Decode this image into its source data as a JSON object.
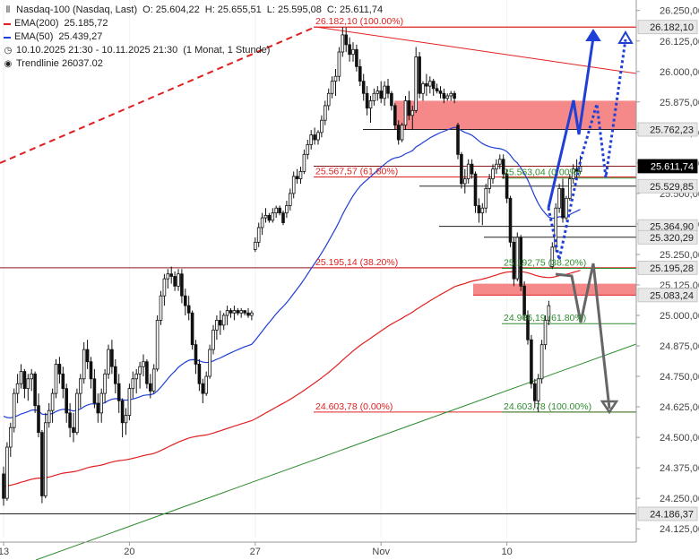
{
  "legend": {
    "instrument": "Nasdaq-100 (Nasdaq, Last)",
    "ohlc": {
      "open": "O: 25.604,22",
      "high": "H: 25.655,51",
      "low": "L: 25.595,08",
      "close": "C: 25.611,74"
    },
    "ema200": {
      "label": "EMA(200)",
      "value": "25.185,72",
      "color": "#e02020"
    },
    "ema50": {
      "label": "EMA(50)",
      "value": "25.439,27",
      "color": "#1f3fd6"
    },
    "period": "10.10.2025 21:30 - 10.11.2025 21:30",
    "interval": "(1 Monat, 1 Stunde)",
    "trendline": "Trendlinie 26037.02",
    "icons": [
      "candles-icon",
      "period-icon",
      "trendline-icon"
    ]
  },
  "chart_data": {
    "type": "candlestick",
    "ylim": [
      24100,
      26260
    ],
    "x_ticks": [
      {
        "label": "13",
        "bar": 0
      },
      {
        "label": "20",
        "bar": 36
      },
      {
        "label": "27",
        "bar": 72
      },
      {
        "label": "Nov",
        "bar": 108
      },
      {
        "label": "10",
        "bar": 144
      }
    ],
    "y_ticks": [
      "26.250,00",
      "26.125,00",
      "26.000,00",
      "25.875,00",
      "25.750,00",
      "25.625,00",
      "25.500,00",
      "25.375,00",
      "25.250,00",
      "25.125,00",
      "25.000,00",
      "24.875,00",
      "24.750,00",
      "24.625,00",
      "24.500,00",
      "24.375,00",
      "24.250,00",
      "24.125,00"
    ],
    "y_tick_values": [
      26250,
      26125,
      26000,
      25875,
      25750,
      25625,
      25500,
      25375,
      25250,
      25125,
      25000,
      24875,
      24750,
      24625,
      24500,
      24375,
      24250,
      24125
    ],
    "price_badges": [
      {
        "label": "26.182,10",
        "value": 26182.1,
        "style": "light"
      },
      {
        "label": "25.762,23",
        "value": 25762.23,
        "style": "light"
      },
      {
        "label": "25.611,74",
        "value": 25611.74,
        "style": "dark"
      },
      {
        "label": "25.529,85",
        "value": 25529.85,
        "style": "light"
      },
      {
        "label": "25.364,90",
        "value": 25364.9,
        "style": "light"
      },
      {
        "label": "25.320,29",
        "value": 25320.29,
        "style": "light"
      },
      {
        "label": "25.195,28",
        "value": 25195.28,
        "style": "light"
      },
      {
        "label": "25.083,24",
        "value": 25083.24,
        "style": "light"
      },
      {
        "label": "24.186,37",
        "value": 24186.37,
        "style": "light"
      }
    ],
    "fib_labels_red": [
      {
        "text": "26.182,10 (100.00%)",
        "value": 26182.1
      },
      {
        "text": "25.567,57 (61.80%)",
        "value": 25567.57
      },
      {
        "text": "25.195,14 (38.20%)",
        "value": 25195.14
      },
      {
        "text": "24.603,78 (0.00%)",
        "value": 24603.78
      }
    ],
    "fib_labels_green": [
      {
        "text": "25.563,04 (0.00%)",
        "value": 25563.04
      },
      {
        "text": "25.192,75 (38.20%)",
        "value": 25192.75
      },
      {
        "text": "24.966,19 (61.80%)",
        "value": 24966.19
      },
      {
        "text": "24.603,78 (100.00%)",
        "value": 24603.78
      }
    ],
    "resistance_zone": [
      25762.23,
      25880
    ],
    "support_zone": [
      25083.24,
      25130
    ],
    "candles": [
      [
        24350,
        24380,
        24220,
        24250
      ],
      [
        24250,
        24480,
        24240,
        24460
      ],
      [
        24460,
        24560,
        24420,
        24540
      ],
      [
        24540,
        24700,
        24520,
        24680
      ],
      [
        24680,
        24760,
        24640,
        24720
      ],
      [
        24720,
        24800,
        24700,
        24770
      ],
      [
        24770,
        24780,
        24660,
        24700
      ],
      [
        24700,
        24760,
        24650,
        24740
      ],
      [
        24740,
        24780,
        24690,
        24760
      ],
      [
        24760,
        24770,
        24600,
        24630
      ],
      [
        24630,
        24680,
        24500,
        24520
      ],
      [
        24520,
        24530,
        24230,
        24260
      ],
      [
        24260,
        24600,
        24250,
        24560
      ],
      [
        24560,
        24640,
        24540,
        24610
      ],
      [
        24610,
        24700,
        24560,
        24680
      ],
      [
        24680,
        24820,
        24660,
        24800
      ],
      [
        24800,
        24830,
        24720,
        24760
      ],
      [
        24760,
        24790,
        24660,
        24700
      ],
      [
        24700,
        24720,
        24560,
        24600
      ],
      [
        24600,
        24640,
        24500,
        24540
      ],
      [
        24540,
        24600,
        24480,
        24520
      ],
      [
        24520,
        24700,
        24510,
        24680
      ],
      [
        24680,
        24760,
        24620,
        24740
      ],
      [
        24740,
        24890,
        24720,
        24860
      ],
      [
        24860,
        24900,
        24780,
        24810
      ],
      [
        24810,
        24830,
        24700,
        24740
      ],
      [
        24740,
        24780,
        24620,
        24640
      ],
      [
        24640,
        24680,
        24560,
        24600
      ],
      [
        24600,
        24700,
        24560,
        24680
      ],
      [
        24680,
        24780,
        24640,
        24760
      ],
      [
        24760,
        24880,
        24740,
        24860
      ],
      [
        24860,
        24900,
        24760,
        24790
      ],
      [
        24790,
        24820,
        24680,
        24720
      ],
      [
        24720,
        24760,
        24600,
        24650
      ],
      [
        24650,
        24660,
        24500,
        24560
      ],
      [
        24560,
        24620,
        24510,
        24590
      ],
      [
        24590,
        24720,
        24570,
        24700
      ],
      [
        24700,
        24770,
        24660,
        24740
      ],
      [
        24740,
        24780,
        24680,
        24760
      ],
      [
        24760,
        24810,
        24700,
        24790
      ],
      [
        24790,
        24840,
        24750,
        24810
      ],
      [
        24810,
        24820,
        24700,
        24720
      ],
      [
        24720,
        24760,
        24660,
        24690
      ],
      [
        24690,
        24800,
        24680,
        24780
      ],
      [
        24780,
        25000,
        24770,
        24980
      ],
      [
        24980,
        25100,
        24960,
        25080
      ],
      [
        25080,
        25170,
        25040,
        25150
      ],
      [
        25150,
        25190,
        25110,
        25170
      ],
      [
        25170,
        25200,
        25130,
        25160
      ],
      [
        25160,
        25180,
        25100,
        25120
      ],
      [
        25120,
        25190,
        25100,
        25170
      ],
      [
        25170,
        25190,
        25050,
        25080
      ],
      [
        25080,
        25110,
        25000,
        25040
      ],
      [
        25040,
        25080,
        24980,
        25010
      ],
      [
        25010,
        25020,
        24860,
        24880
      ],
      [
        24880,
        24900,
        24760,
        24800
      ],
      [
        24800,
        24820,
        24690,
        24720
      ],
      [
        24720,
        24740,
        24640,
        24680
      ],
      [
        24680,
        24770,
        24670,
        24750
      ],
      [
        24750,
        24880,
        24740,
        24860
      ],
      [
        24860,
        24960,
        24840,
        24940
      ],
      [
        24940,
        25000,
        24900,
        24980
      ],
      [
        24980,
        25020,
        24920,
        24960
      ],
      [
        24960,
        25010,
        24940,
        25000
      ],
      [
        25000,
        25040,
        24960,
        25020
      ],
      [
        25020,
        25030,
        24990,
        25010
      ],
      [
        25010,
        25040,
        24980,
        25020
      ],
      [
        25020,
        25030,
        25000,
        25010
      ],
      [
        25010,
        25030,
        24990,
        25020
      ],
      [
        25020,
        25020,
        25000,
        25010
      ],
      [
        25010,
        25030,
        24990,
        25000
      ],
      [
        25000,
        25020,
        24980,
        25010
      ],
      [
        25270,
        25320,
        25260,
        25300
      ],
      [
        25300,
        25380,
        25280,
        25360
      ],
      [
        25360,
        25420,
        25330,
        25400
      ],
      [
        25400,
        25440,
        25380,
        25410
      ],
      [
        25410,
        25420,
        25380,
        25390
      ],
      [
        25390,
        25440,
        25380,
        25420
      ],
      [
        25420,
        25450,
        25400,
        25440
      ],
      [
        25440,
        25450,
        25410,
        25420
      ],
      [
        25420,
        25430,
        25370,
        25380
      ],
      [
        25420,
        25470,
        25400,
        25450
      ],
      [
        25450,
        25520,
        25430,
        25500
      ],
      [
        25500,
        25590,
        25480,
        25570
      ],
      [
        25570,
        25600,
        25540,
        25560
      ],
      [
        25560,
        25610,
        25540,
        25590
      ],
      [
        25590,
        25680,
        25580,
        25660
      ],
      [
        25660,
        25720,
        25640,
        25700
      ],
      [
        25700,
        25760,
        25680,
        25740
      ],
      [
        25740,
        25770,
        25700,
        25720
      ],
      [
        25720,
        25760,
        25700,
        25750
      ],
      [
        25750,
        25820,
        25730,
        25800
      ],
      [
        25800,
        25880,
        25780,
        25860
      ],
      [
        25860,
        25930,
        25840,
        25910
      ],
      [
        25910,
        25980,
        25890,
        25960
      ],
      [
        25960,
        26010,
        25900,
        25980
      ],
      [
        25980,
        26100,
        25960,
        26080
      ],
      [
        26080,
        26182,
        26060,
        26150
      ],
      [
        26150,
        26180,
        26080,
        26110
      ],
      [
        26110,
        26140,
        26040,
        26070
      ],
      [
        26070,
        26120,
        26040,
        26090
      ],
      [
        26090,
        26110,
        26000,
        26020
      ],
      [
        26020,
        26050,
        25940,
        25960
      ],
      [
        25960,
        25990,
        25880,
        25910
      ],
      [
        25910,
        25940,
        25820,
        25850
      ],
      [
        25850,
        25900,
        25790,
        25880
      ],
      [
        25880,
        25930,
        25860,
        25910
      ],
      [
        25910,
        25940,
        25880,
        25920
      ],
      [
        25920,
        25960,
        25870,
        25890
      ],
      [
        25890,
        25960,
        25860,
        25940
      ],
      [
        25940,
        25970,
        25890,
        25910
      ],
      [
        25910,
        25920,
        25840,
        25860
      ],
      [
        25860,
        25870,
        25760,
        25780
      ],
      [
        25780,
        25800,
        25700,
        25720
      ],
      [
        25720,
        25790,
        25710,
        25780
      ],
      [
        25780,
        25900,
        25760,
        25880
      ],
      [
        25880,
        25920,
        25800,
        25820
      ],
      [
        25820,
        25860,
        25760,
        25840
      ],
      [
        25840,
        26100,
        25830,
        26060
      ],
      [
        26060,
        26080,
        25890,
        25910
      ],
      [
        25910,
        25960,
        25880,
        25950
      ],
      [
        25950,
        25990,
        25900,
        25940
      ],
      [
        25940,
        25980,
        25910,
        25960
      ],
      [
        25960,
        25970,
        25900,
        25930
      ],
      [
        25930,
        25950,
        25910,
        25920
      ],
      [
        25920,
        25940,
        25890,
        25910
      ],
      [
        25910,
        25930,
        25870,
        25890
      ],
      [
        25890,
        25910,
        25880,
        25900
      ],
      [
        25900,
        25920,
        25880,
        25910
      ],
      [
        25910,
        25920,
        25870,
        25890
      ],
      [
        25780,
        25790,
        25640,
        25660
      ],
      [
        25660,
        25670,
        25520,
        25540
      ],
      [
        25540,
        25600,
        25500,
        25560
      ],
      [
        25560,
        25640,
        25540,
        25620
      ],
      [
        25620,
        25640,
        25560,
        25580
      ],
      [
        25580,
        25590,
        25420,
        25450
      ],
      [
        25450,
        25480,
        25380,
        25420
      ],
      [
        25420,
        25460,
        25370,
        25440
      ],
      [
        25440,
        25540,
        25420,
        25520
      ],
      [
        25520,
        25580,
        25500,
        25560
      ],
      [
        25560,
        25620,
        25540,
        25600
      ],
      [
        25600,
        25640,
        25580,
        25620
      ],
      [
        25620,
        25660,
        25600,
        25640
      ],
      [
        25640,
        25660,
        25560,
        25580
      ],
      [
        25580,
        25600,
        25460,
        25480
      ],
      [
        25480,
        25490,
        25280,
        25300
      ],
      [
        25300,
        25320,
        25120,
        25150
      ],
      [
        25150,
        25340,
        25140,
        25320
      ],
      [
        25320,
        25330,
        25100,
        25120
      ],
      [
        25120,
        25140,
        24980,
        25000
      ],
      [
        25000,
        25020,
        24880,
        24900
      ],
      [
        24900,
        24920,
        24700,
        24720
      ],
      [
        24720,
        24740,
        24620,
        24650
      ],
      [
        24650,
        24760,
        24603,
        24740
      ],
      [
        24740,
        24900,
        24720,
        24880
      ],
      [
        24880,
        25000,
        24860,
        24980
      ],
      [
        24980,
        25060,
        24960,
        25040
      ],
      [
        25200,
        25300,
        25190,
        25280
      ],
      [
        25280,
        25460,
        25260,
        25440
      ],
      [
        25440,
        25540,
        25420,
        25520
      ],
      [
        25520,
        25560,
        25380,
        25400
      ],
      [
        25400,
        25490,
        25390,
        25480
      ],
      [
        25480,
        25580,
        25470,
        25560
      ],
      [
        25560,
        25620,
        25540,
        25600
      ],
      [
        25600,
        25640,
        25560,
        25590
      ],
      [
        25590,
        25655,
        25580,
        25611
      ]
    ]
  }
}
